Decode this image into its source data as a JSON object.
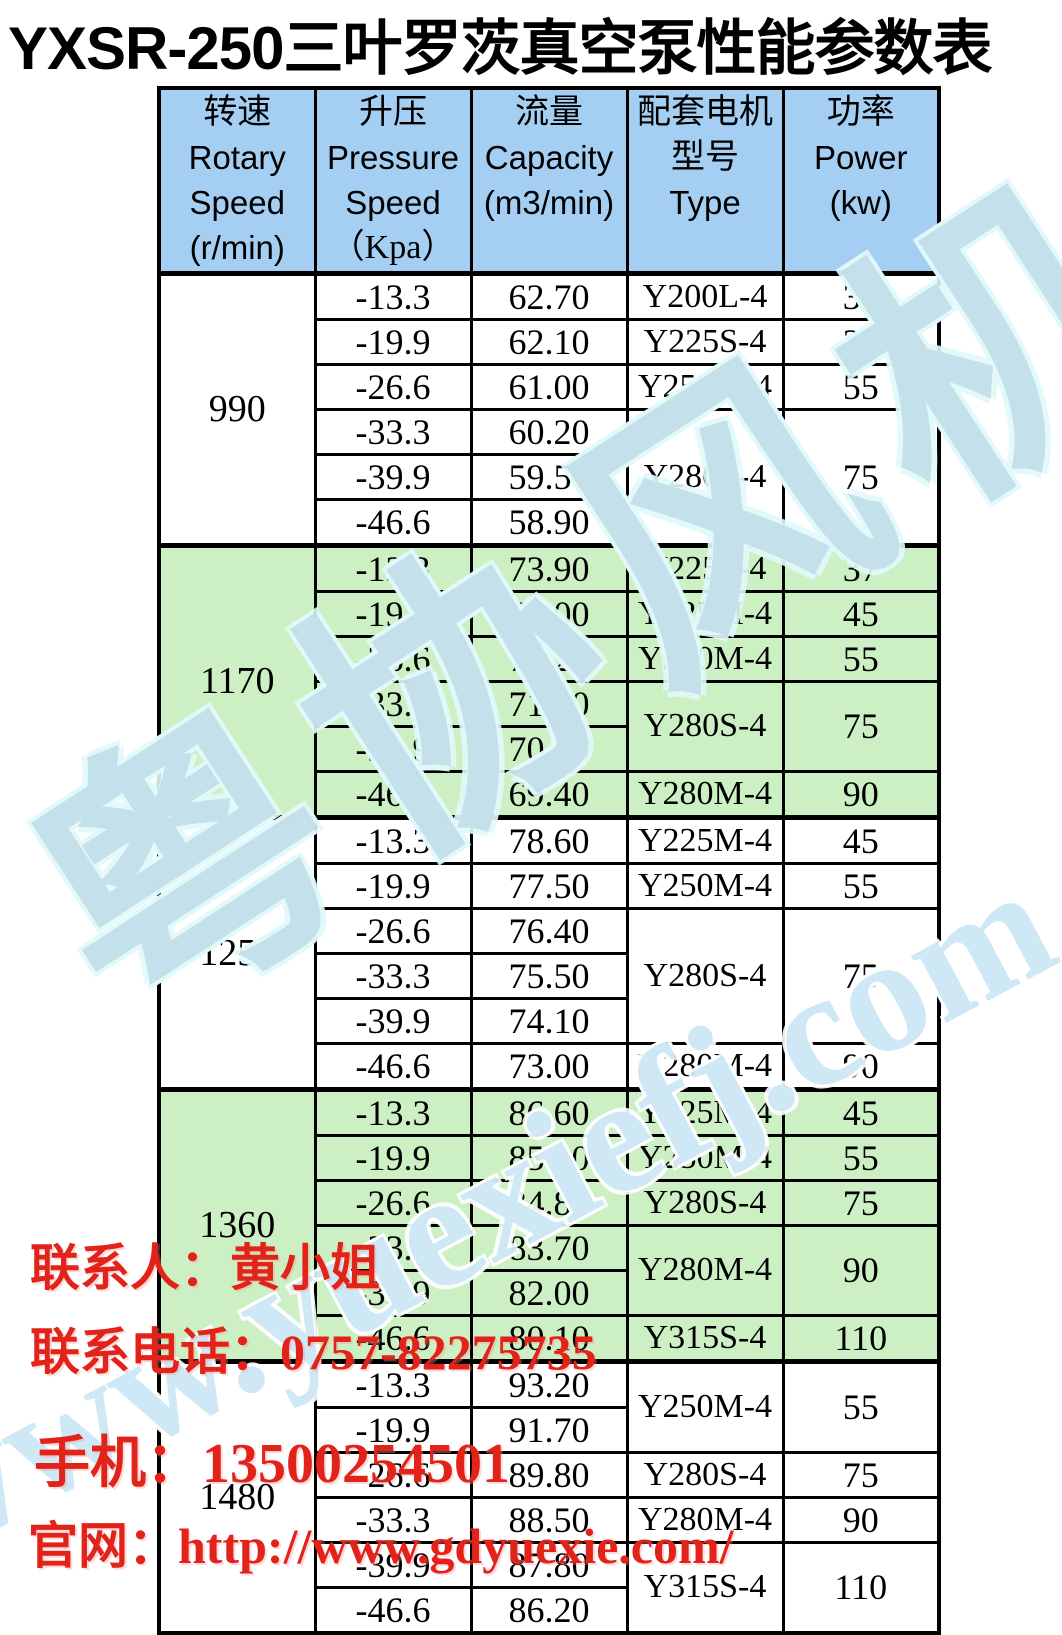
{
  "title": "YXSR-250三叶罗茨真空泵性能参数表",
  "colors": {
    "header_bg": "#a5cff2",
    "group_green_bg": "#ccf0c4",
    "group_white_bg": "#ffffff",
    "border": "#000000",
    "contact_red": "#e2231a",
    "watermark_blue": "#bad8e5"
  },
  "table": {
    "columns": [
      {
        "name": "rotary-speed",
        "lines": [
          "转速",
          "Rotary",
          "Speed",
          "(r/min)"
        ]
      },
      {
        "name": "pressure-speed",
        "lines": [
          "升压",
          "Pressure",
          "Speed",
          "（Kpa）"
        ]
      },
      {
        "name": "capacity",
        "lines": [
          "流量",
          "Capacity",
          "(m3/min)"
        ]
      },
      {
        "name": "motor-type",
        "lines": [
          "配套电机",
          "型号",
          "Type"
        ]
      },
      {
        "name": "power",
        "lines": [
          "功率",
          "Power",
          "(kw)"
        ]
      }
    ],
    "groups": [
      {
        "speed": "990",
        "color": "white",
        "rows": [
          {
            "pressure": "-13.3",
            "capacity": "62.70",
            "motor": "Y200L-4",
            "motor_rowspan": 1,
            "power": "30",
            "power_rowspan": 1
          },
          {
            "pressure": "-19.9",
            "capacity": "62.10",
            "motor": "Y225S-4",
            "motor_rowspan": 1,
            "power": "37",
            "power_rowspan": 1
          },
          {
            "pressure": "-26.6",
            "capacity": "61.00",
            "motor": "Y250M-4",
            "motor_rowspan": 1,
            "power": "55",
            "power_rowspan": 1
          },
          {
            "pressure": "-33.3",
            "capacity": "60.20",
            "motor": "Y280S-4",
            "motor_rowspan": 3,
            "power": "75",
            "power_rowspan": 3
          },
          {
            "pressure": "-39.9",
            "capacity": "59.50"
          },
          {
            "pressure": "-46.6",
            "capacity": "58.90"
          }
        ]
      },
      {
        "speed": "1170",
        "color": "green",
        "rows": [
          {
            "pressure": "-13.3",
            "capacity": "73.90",
            "motor": "Y225S-4",
            "motor_rowspan": 1,
            "power": "37",
            "power_rowspan": 1
          },
          {
            "pressure": "-19.9",
            "capacity": "73.00",
            "motor": "Y225M-4",
            "motor_rowspan": 1,
            "power": "45",
            "power_rowspan": 1
          },
          {
            "pressure": "-26.6",
            "capacity": "72.20",
            "motor": "Y250M-4",
            "motor_rowspan": 1,
            "power": "55",
            "power_rowspan": 1
          },
          {
            "pressure": "-33.3",
            "capacity": "71.40",
            "motor": "Y280S-4",
            "motor_rowspan": 2,
            "power": "75",
            "power_rowspan": 2
          },
          {
            "pressure": "-39.9",
            "capacity": "70.50"
          },
          {
            "pressure": "-46.6",
            "capacity": "69.40",
            "motor": "Y280M-4",
            "motor_rowspan": 1,
            "power": "90",
            "power_rowspan": 1
          }
        ]
      },
      {
        "speed": "1250",
        "color": "white",
        "rows": [
          {
            "pressure": "-13.3",
            "capacity": "78.60",
            "motor": "Y225M-4",
            "motor_rowspan": 1,
            "power": "45",
            "power_rowspan": 1
          },
          {
            "pressure": "-19.9",
            "capacity": "77.50",
            "motor": "Y250M-4",
            "motor_rowspan": 1,
            "power": "55",
            "power_rowspan": 1
          },
          {
            "pressure": "-26.6",
            "capacity": "76.40",
            "motor": "Y280S-4",
            "motor_rowspan": 3,
            "power": "75",
            "power_rowspan": 3
          },
          {
            "pressure": "-33.3",
            "capacity": "75.50"
          },
          {
            "pressure": "-39.9",
            "capacity": "74.10"
          },
          {
            "pressure": "-46.6",
            "capacity": "73.00",
            "motor": "Y280M-4",
            "motor_rowspan": 1,
            "power": "90",
            "power_rowspan": 1
          }
        ]
      },
      {
        "speed": "1360",
        "color": "green",
        "rows": [
          {
            "pressure": "-13.3",
            "capacity": "86.60",
            "motor": "Y225M-4",
            "motor_rowspan": 1,
            "power": "45",
            "power_rowspan": 1
          },
          {
            "pressure": "-19.9",
            "capacity": "85.90",
            "motor": "Y250M-4",
            "motor_rowspan": 1,
            "power": "55",
            "power_rowspan": 1
          },
          {
            "pressure": "-26.6",
            "capacity": "84.80",
            "motor": "Y280S-4",
            "motor_rowspan": 1,
            "power": "75",
            "power_rowspan": 1
          },
          {
            "pressure": "-33.3",
            "capacity": "83.70",
            "motor": "Y280M-4",
            "motor_rowspan": 2,
            "power": "90",
            "power_rowspan": 2
          },
          {
            "pressure": "-39.9",
            "capacity": "82.00"
          },
          {
            "pressure": "-46.6",
            "capacity": "80.10",
            "motor": "Y315S-4",
            "motor_rowspan": 1,
            "power": "110",
            "power_rowspan": 1
          }
        ]
      },
      {
        "speed": "1480",
        "color": "white",
        "rows": [
          {
            "pressure": "-13.3",
            "capacity": "93.20",
            "motor": "Y250M-4",
            "motor_rowspan": 2,
            "power": "55",
            "power_rowspan": 2
          },
          {
            "pressure": "-19.9",
            "capacity": "91.70"
          },
          {
            "pressure": "-26.6",
            "capacity": "89.80",
            "motor": "Y280S-4",
            "motor_rowspan": 1,
            "power": "75",
            "power_rowspan": 1
          },
          {
            "pressure": "-33.3",
            "capacity": "88.50",
            "motor": "Y280M-4",
            "motor_rowspan": 1,
            "power": "90",
            "power_rowspan": 1
          },
          {
            "pressure": "-39.9",
            "capacity": "87.80",
            "motor": "Y315S-4",
            "motor_rowspan": 2,
            "power": "110",
            "power_rowspan": 2
          },
          {
            "pressure": "-46.6",
            "capacity": "86.20"
          }
        ]
      }
    ]
  },
  "contacts": [
    {
      "text": "联系人：黄小姐"
    },
    {
      "text": "联系电话：0757-82275735"
    },
    {
      "text": "手机：13500254501"
    },
    {
      "text": "官网：http://www.gdyuexie.com/"
    }
  ],
  "watermarks": {
    "logo_text": "粤协风机",
    "url_text": "www.yuexiefj.com"
  }
}
